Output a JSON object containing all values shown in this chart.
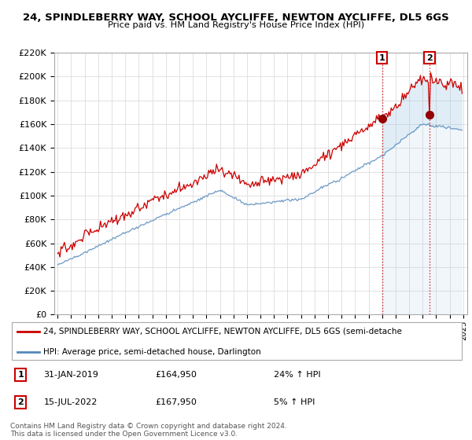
{
  "title": "24, SPINDLEBERRY WAY, SCHOOL AYCLIFFE, NEWTON AYCLIFFE, DL5 6GS",
  "subtitle": "Price paid vs. HM Land Registry's House Price Index (HPI)",
  "legend_line1": "24, SPINDLEBERRY WAY, SCHOOL AYCLIFFE, NEWTON AYCLIFFE, DL5 6GS (semi-detache",
  "legend_line2": "HPI: Average price, semi-detached house, Darlington",
  "footer": "Contains HM Land Registry data © Crown copyright and database right 2024.\nThis data is licensed under the Open Government Licence v3.0.",
  "transaction1_date": "31-JAN-2019",
  "transaction1_price": "£164,950",
  "transaction1_hpi": "24% ↑ HPI",
  "transaction2_date": "15-JUL-2022",
  "transaction2_price": "£167,950",
  "transaction2_hpi": "5% ↑ HPI",
  "red_color": "#cc0000",
  "blue_color": "#5588bb",
  "fill_blue_color": "#cce0f0",
  "ylim": [
    0,
    220000
  ],
  "yticks": [
    0,
    20000,
    40000,
    60000,
    80000,
    100000,
    120000,
    140000,
    160000,
    180000,
    200000,
    220000
  ]
}
